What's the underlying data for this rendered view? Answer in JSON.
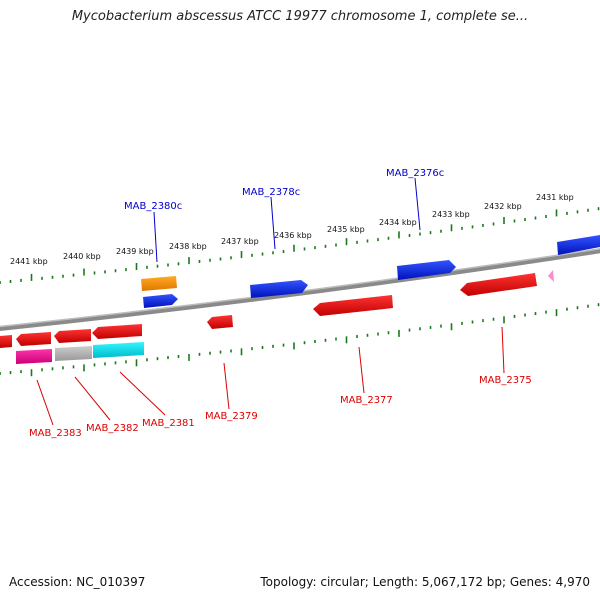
{
  "title": "Mycobacterium abscessus ATCC 19977 chromosome 1, complete se...",
  "footer": {
    "accession": "Accession: NC_010397",
    "topology": "Topology: circular; Length: 5,067,172 bp; Genes: 4,970"
  },
  "colors": {
    "backbone": "#8a8a8a",
    "tick": "#1a7a1a",
    "forward_label": "#0000cc",
    "reverse_label": "#dd0000"
  },
  "kbp_labels": [
    "2441 kbp",
    "2440 kbp",
    "2439 kbp",
    "2438 kbp",
    "2437 kbp",
    "2436 kbp",
    "2435 kbp",
    "2434 kbp",
    "2433 kbp",
    "2432 kbp",
    "2431 kbp"
  ],
  "genes_forward_labels": [
    "MAB_2380c",
    "MAB_2378c",
    "MAB_2376c"
  ],
  "genes_reverse_labels": [
    "MAB_2383",
    "MAB_2382",
    "MAB_2381",
    "MAB_2379",
    "MAB_2377",
    "MAB_2375"
  ],
  "feature_colors": {
    "blue": "#0022dd",
    "orange": "#ff9900",
    "red": "#ee0000",
    "magenta": "#ee1199",
    "grey": "#bbbbbb",
    "cyan": "#00e5ee",
    "pink": "#ff88cc"
  }
}
